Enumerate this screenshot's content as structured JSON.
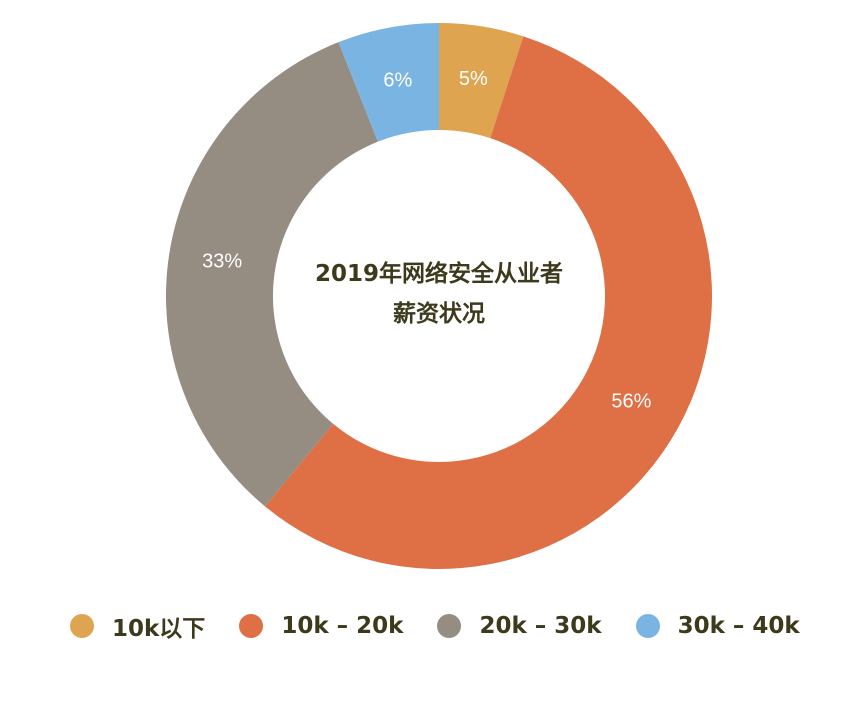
{
  "chart_data": {
    "type": "pie",
    "title": "2019年网络安全从业者",
    "subtitle": "薪资状况",
    "categories": [
      "10k以下",
      "10k – 20k",
      "20k – 30k",
      "30k – 40k"
    ],
    "values": [
      5,
      56,
      33,
      6
    ],
    "value_labels": [
      "5%",
      "56%",
      "33%",
      "6%"
    ],
    "colors": [
      "#dea44f",
      "#df6f45",
      "#958c82",
      "#7ab4e2"
    ],
    "donut": true,
    "legend": "bottom"
  }
}
